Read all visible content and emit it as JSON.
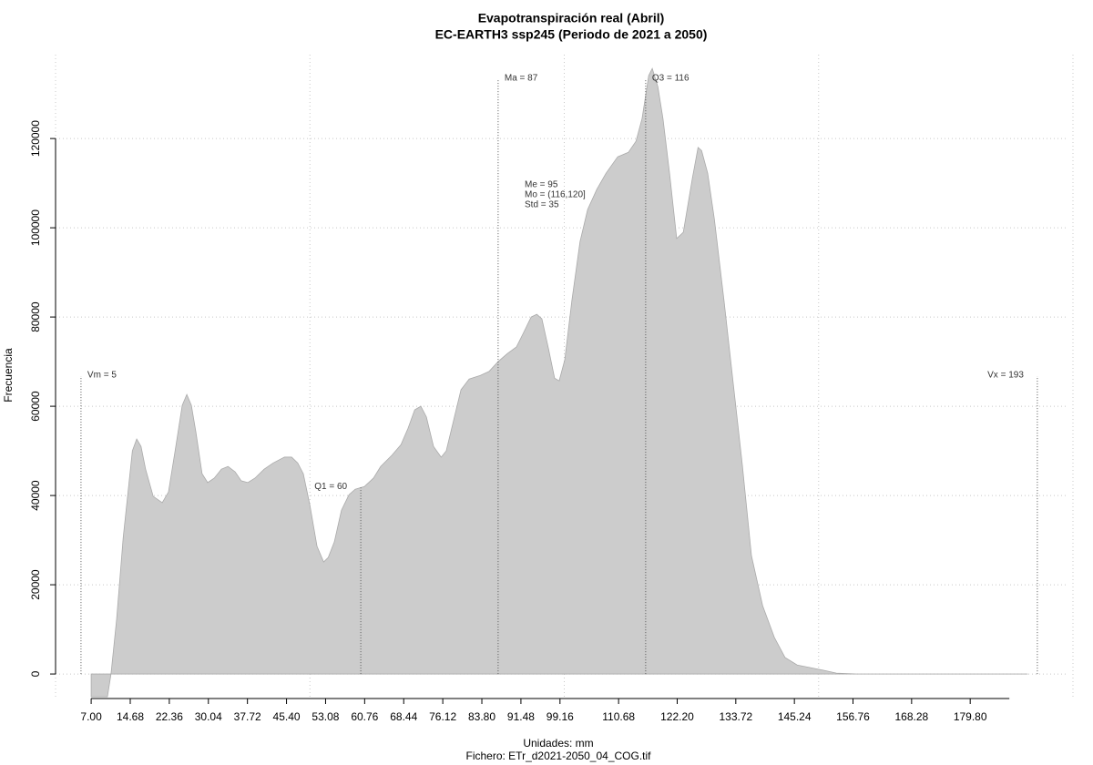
{
  "chart_data": {
    "type": "area",
    "title": "Evapotranspiración real (Abril)",
    "subtitle": "EC-EARTH3 ssp245 (Periodo de 2021 a 2050)",
    "xlabel": "Unidades: mm",
    "caption": "Fichero: ETr_d2021-2050_04_COG.tif",
    "ylabel": "Frecuencia",
    "color": "#cccccc",
    "xlim": [
      0,
      200
    ],
    "ylim": [
      -5700,
      138800
    ],
    "xticks": [
      {
        "value": 7,
        "label": "7.00"
      },
      14.68,
      22.36,
      30.04,
      37.72,
      {
        "value": 45.4,
        "label": "45.40"
      },
      53.08,
      60.76,
      68.44,
      76.12,
      {
        "value": 83.8,
        "label": "83.80"
      },
      91.48,
      99.16,
      110.68,
      {
        "value": 122.2,
        "label": "122.20"
      },
      133.72,
      145.24,
      156.76,
      168.28,
      {
        "value": 179.8,
        "label": "179.80"
      }
    ],
    "xgrid": [
      0,
      50,
      100,
      150,
      200
    ],
    "yticks": [
      0,
      20000,
      40000,
      60000,
      80000,
      100000,
      120000
    ],
    "grid": true,
    "x": [
      7.0,
      10.2,
      10.9,
      12.0,
      13.3,
      15.1,
      15.95,
      16.8,
      17.7,
      19.2,
      20.97,
      22.2,
      23.5,
      24.9,
      25.8,
      26.7,
      27.6,
      28.8,
      29.9,
      31.2,
      32.6,
      33.9,
      35.3,
      36.5,
      37.8,
      39.2,
      41.0,
      42.8,
      45.0,
      46.4,
      47.6,
      48.7,
      50.0,
      51.4,
      52.7,
      53.6,
      54.8,
      56.2,
      57.7,
      58.9,
      60.7,
      62.5,
      63.9,
      66.1,
      67.9,
      69.3,
      70.6,
      71.8,
      72.9,
      74.3,
      75.8,
      76.8,
      78.3,
      79.7,
      81.3,
      83.5,
      85.2,
      87.0,
      88.8,
      90.6,
      92.0,
      93.5,
      94.6,
      95.6,
      96.9,
      98.1,
      99.0,
      100.1,
      101.5,
      103.1,
      104.6,
      106.4,
      108.2,
      110.5,
      112.6,
      114.1,
      115.3,
      116.6,
      117.3,
      118.4,
      119.4,
      120.7,
      122.1,
      123.4,
      125.2,
      126.3,
      127.0,
      128.2,
      129.5,
      131.4,
      133.2,
      135.0,
      136.8,
      139.0,
      141.3,
      143.4,
      145.8,
      148.5,
      151.1,
      153.5,
      157.4,
      191.1
    ],
    "values": [
      -5100,
      -5100,
      0,
      12200,
      30600,
      50000,
      52650,
      51000,
      45900,
      39800,
      38400,
      40800,
      50000,
      60200,
      62650,
      60200,
      54100,
      44900,
      42900,
      43900,
      45900,
      46500,
      45300,
      43300,
      42900,
      43900,
      45900,
      47300,
      48600,
      48600,
      47300,
      44900,
      37800,
      28600,
      25100,
      26100,
      29600,
      36700,
      40200,
      41400,
      42000,
      43900,
      46500,
      49000,
      51400,
      55100,
      59200,
      60000,
      57600,
      51000,
      48600,
      50000,
      57100,
      63700,
      66100,
      66900,
      67800,
      70000,
      71800,
      73300,
      76500,
      80000,
      80600,
      79600,
      72900,
      66300,
      65700,
      70400,
      83700,
      96900,
      104100,
      108600,
      112200,
      115900,
      116900,
      119400,
      124500,
      134100,
      135700,
      131600,
      124500,
      112200,
      97600,
      99000,
      111200,
      118000,
      117300,
      112200,
      102000,
      83700,
      65300,
      46900,
      26500,
      15300,
      8200,
      3700,
      2000,
      1400,
      800,
      200,
      0,
      0
    ],
    "markers": [
      {
        "label": "Vm = 5",
        "x": 5
      },
      {
        "label": "Q1 = 60",
        "x": 60
      },
      {
        "label": "Ma = 87",
        "x": 87
      },
      {
        "label": "Q3 = 116",
        "x": 116
      },
      {
        "label": "Vx = 193",
        "x": 193
      }
    ],
    "stats": [
      "Me = 95",
      "Mo = (116,120]",
      "Std = 35"
    ]
  }
}
